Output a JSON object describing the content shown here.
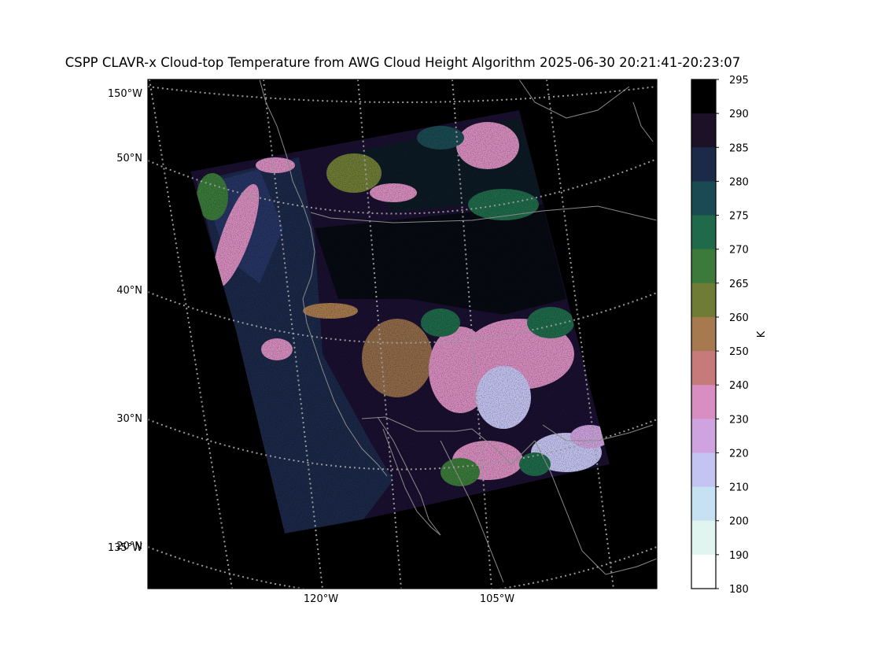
{
  "title": "CSPP CLAVR-x Cloud-top Temperature from AWG Cloud Height Algorithm 2025-06-30 20:21:41-20:23:07",
  "map": {
    "background": "#000000",
    "coastline_color": "#8a8a8a",
    "graticule_color": "#9a9a9a",
    "latitude_labels": [
      "50°N",
      "40°N",
      "30°N",
      "20°N"
    ],
    "longitude_labels_left": [
      "150°W",
      "135°W"
    ],
    "longitude_labels_bottom": [
      "120°W",
      "105°W"
    ]
  },
  "colorbar": {
    "unit_label": "K",
    "ticks": [
      "295",
      "290",
      "285",
      "280",
      "275",
      "270",
      "265",
      "260",
      "250",
      "240",
      "230",
      "220",
      "210",
      "200",
      "190",
      "180"
    ],
    "colors": [
      "#000000",
      "#1c1126",
      "#1c2a4a",
      "#1a4a52",
      "#1f6a4a",
      "#3b7a3a",
      "#6f7c36",
      "#a67a4e",
      "#c67a7a",
      "#d88ec0",
      "#cfa3e0",
      "#c4c4f2",
      "#c6e2f2",
      "#e0f5f0",
      "#ffffff"
    ]
  }
}
